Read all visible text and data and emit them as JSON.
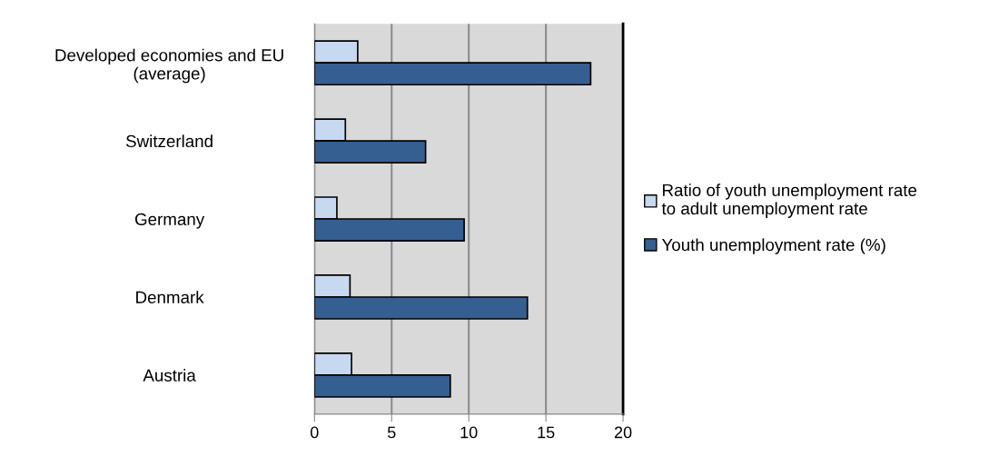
{
  "chart_data": {
    "type": "bar",
    "orientation": "horizontal",
    "categories": [
      "Developed economies and EU\n(average)",
      "Switzerland",
      "Germany",
      "Denmark",
      "Austria"
    ],
    "series": [
      {
        "name": "Ratio of youth unemployment rate\nto adult unemployment rate",
        "color": "#c6d9f1",
        "values": [
          2.8,
          2.0,
          1.45,
          2.3,
          2.4
        ]
      },
      {
        "name": "Youth unemployment rate (%)",
        "color": "#355f91",
        "values": [
          17.9,
          7.2,
          9.7,
          13.8,
          8.8
        ]
      }
    ],
    "xlim": [
      0,
      20
    ],
    "xticks": [
      0,
      5,
      10,
      15,
      20
    ],
    "grid": "x",
    "legend": "right"
  }
}
